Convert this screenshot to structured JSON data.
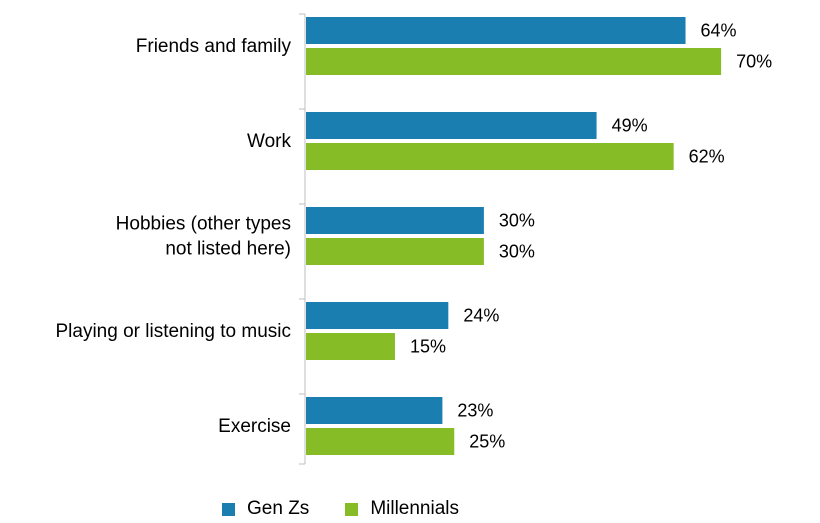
{
  "chart_data": {
    "type": "bar",
    "orientation": "horizontal",
    "categories": [
      [
        "Friends and family"
      ],
      [
        "Work"
      ],
      [
        "Hobbies (other types",
        "not listed here)"
      ],
      [
        "Playing or listening to music"
      ],
      [
        "Exercise"
      ]
    ],
    "series": [
      {
        "name": "Gen Zs",
        "color": "#1a7fb0",
        "values": [
          64,
          49,
          30,
          24,
          23
        ]
      },
      {
        "name": "Millennials",
        "color": "#86bc25",
        "values": [
          70,
          62,
          30,
          15,
          25
        ]
      }
    ],
    "value_suffix": "%",
    "xlim": [
      0,
      100
    ],
    "legend_position": "bottom",
    "grid": false
  }
}
